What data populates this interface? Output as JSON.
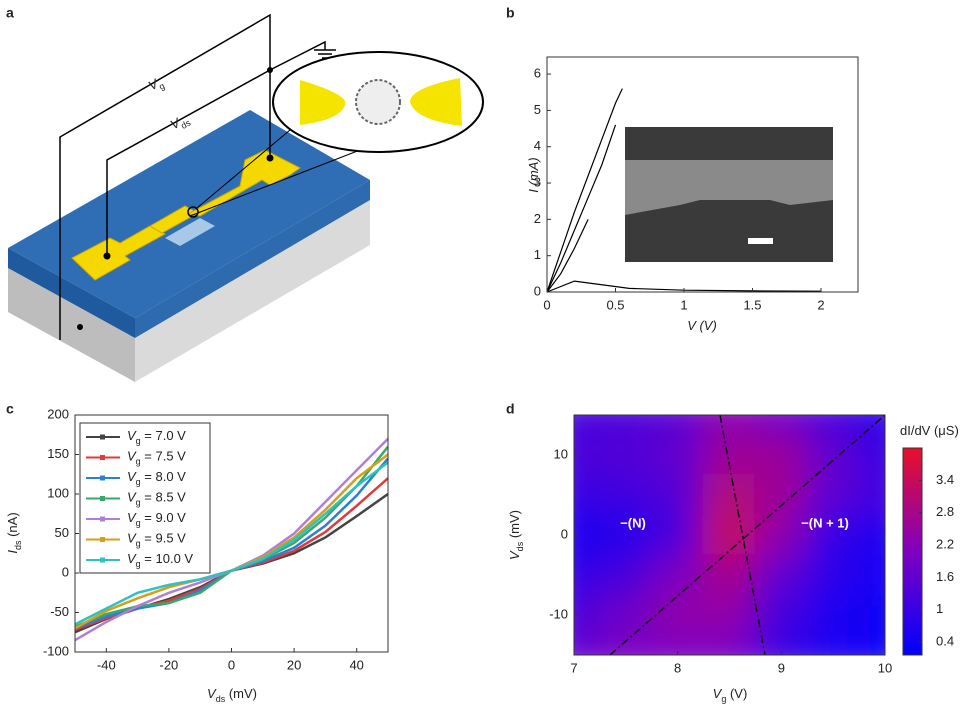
{
  "panel_labels": [
    "a",
    "b",
    "c",
    "d"
  ],
  "diagram": {
    "gate_label": "Vg",
    "bias_label": "Vds"
  },
  "chart_data": [
    {
      "type": "line",
      "xlabel": "V (V)",
      "ylabel": "I (mA)",
      "xlim": [
        0,
        2.27
      ],
      "xticks": [
        0,
        0.5,
        1.0,
        1.5,
        2.0
      ],
      "ylim": [
        0,
        6.47
      ],
      "yticks": [
        0,
        1,
        2,
        3,
        4,
        5,
        6
      ],
      "series": [
        {
          "color": "#000000",
          "x": [
            0,
            0.1,
            0.2,
            0.3,
            0.4,
            0.5,
            0.55
          ],
          "values": [
            0,
            1.1,
            2.2,
            3.2,
            4.2,
            5.2,
            5.6
          ]
        },
        {
          "color": "#000000",
          "x": [
            0,
            0.1,
            0.2,
            0.3,
            0.4,
            0.5
          ],
          "values": [
            0,
            0.8,
            1.7,
            2.6,
            3.5,
            4.6
          ]
        },
        {
          "color": "#000000",
          "x": [
            0,
            0.1,
            0.2,
            0.25,
            0.3
          ],
          "values": [
            0,
            0.5,
            1.2,
            1.6,
            2.0
          ]
        },
        {
          "color": "#000000",
          "x": [
            0,
            0.2,
            0.4,
            0.6,
            1.0,
            1.5,
            2.0
          ],
          "values": [
            0,
            0.3,
            0.2,
            0.1,
            0.05,
            0.03,
            0.02
          ]
        }
      ]
    },
    {
      "type": "line",
      "xlabel": "Vds (mV)",
      "ylabel": "Ids (nA)",
      "x": [
        -50,
        -40,
        -30,
        -20,
        -10,
        0,
        10,
        20,
        30,
        40,
        50
      ],
      "xlim": [
        -50,
        50
      ],
      "xticks": [
        -40,
        -20,
        0,
        20,
        40
      ],
      "ylim": [
        -100,
        200
      ],
      "yticks": [
        -100,
        -50,
        0,
        50,
        100,
        150,
        200
      ],
      "series": [
        {
          "name": "Vg = 7.0 V",
          "color": "#444444",
          "values": [
            -75,
            -58,
            -45,
            -33,
            -18,
            3,
            12,
            25,
            45,
            72,
            100
          ]
        },
        {
          "name": "Vg = 7.5 V",
          "color": "#e03a3a",
          "values": [
            -72,
            -57,
            -45,
            -35,
            -20,
            3,
            13,
            28,
            52,
            85,
            120
          ]
        },
        {
          "name": "Vg = 8.0 V",
          "color": "#2c7fd6",
          "values": [
            -70,
            -55,
            -45,
            -38,
            -22,
            3,
            15,
            32,
            60,
            98,
            145
          ]
        },
        {
          "name": "Vg = 8.5 V",
          "color": "#3aa86a",
          "values": [
            -68,
            -52,
            -42,
            -38,
            -25,
            3,
            17,
            38,
            70,
            110,
            160
          ]
        },
        {
          "name": "Vg = 9.0 V",
          "color": "#b07ed8",
          "values": [
            -85,
            -62,
            -42,
            -25,
            -12,
            3,
            22,
            50,
            90,
            130,
            170
          ]
        },
        {
          "name": "Vg = 9.5 V",
          "color": "#d4a017",
          "values": [
            -70,
            -48,
            -32,
            -18,
            -8,
            3,
            20,
            45,
            80,
            120,
            150
          ]
        },
        {
          "name": "Vg = 10.0 V",
          "color": "#30c0c0",
          "values": [
            -65,
            -45,
            -25,
            -15,
            -8,
            3,
            18,
            42,
            75,
            110,
            140
          ]
        }
      ]
    },
    {
      "type": "heatmap",
      "xlabel": "Vg (V)",
      "ylabel": "Vds (mV)",
      "colorbar_label": "dI/dV (μS)",
      "annotations": [
        "−(N)",
        "−(N + 1)"
      ],
      "xlim": [
        7,
        10
      ],
      "xticks": [
        7,
        8,
        9,
        10
      ],
      "ylim": [
        -15,
        15
      ],
      "yticks": [
        -10,
        0,
        10
      ],
      "x": [
        7,
        7.5,
        8,
        8.5,
        9,
        9.5,
        10
      ],
      "y": [
        15,
        10,
        5,
        0,
        -5,
        -10,
        -15
      ],
      "z": [
        [
          1.2,
          1.3,
          1.5,
          2.3,
          1.8,
          1.2,
          0.8
        ],
        [
          1.3,
          1.4,
          1.6,
          2.6,
          2.6,
          1.6,
          1.0
        ],
        [
          1.0,
          1.1,
          1.4,
          3.0,
          2.6,
          1.6,
          1.1
        ],
        [
          0.6,
          0.7,
          1.2,
          3.4,
          2.4,
          0.9,
          0.6
        ],
        [
          0.9,
          1.2,
          2.0,
          2.8,
          1.6,
          0.8,
          0.5
        ],
        [
          1.3,
          1.8,
          2.4,
          2.4,
          1.2,
          0.6,
          0.4
        ],
        [
          1.6,
          2.0,
          2.0,
          2.0,
          1.0,
          0.6,
          0.4
        ]
      ],
      "zlim": [
        0.16,
        4.0
      ],
      "zticks": [
        0.4,
        1.0,
        1.6,
        2.2,
        2.8,
        3.4
      ],
      "colormap": [
        "#0000ff",
        "#8000c0",
        "#e8102a"
      ]
    }
  ]
}
